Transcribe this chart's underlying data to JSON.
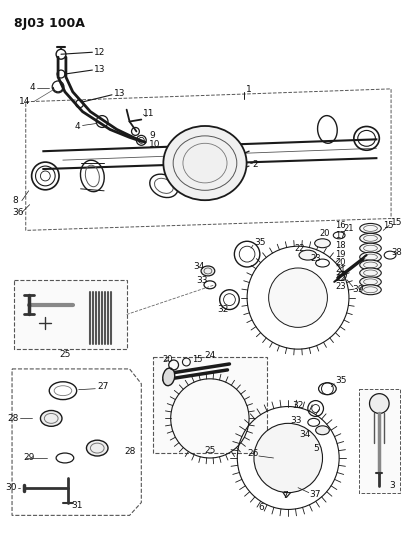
{
  "title": "8J03 100A",
  "bg_color": "#ffffff",
  "fig_width": 4.08,
  "fig_height": 5.33,
  "dpi": 100
}
